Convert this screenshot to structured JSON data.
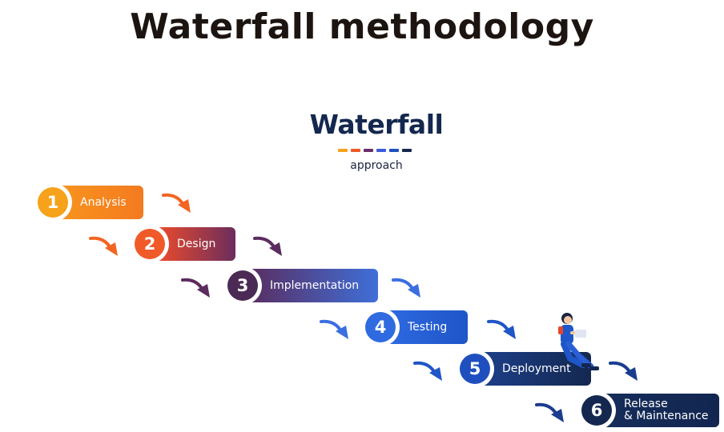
{
  "title": "Waterfall methodology",
  "logo": {
    "word": "Waterfall",
    "sub": "approach",
    "bar_colors": [
      "#f7a21b",
      "#f05a28",
      "#6b2d6b",
      "#3b5bdb",
      "#1f4fbf",
      "#14284f"
    ]
  },
  "steps": [
    {
      "num": "1",
      "label": "Analysis",
      "circle": "#f7a21b",
      "grad": [
        "#f7941d",
        "#f47a20"
      ],
      "arrow": "#f26522"
    },
    {
      "num": "2",
      "label": "Design",
      "circle": "#f05a28",
      "grad": [
        "#ef4c2a",
        "#6b2d5c"
      ],
      "arrow": "#5b2c5f"
    },
    {
      "num": "3",
      "label": "Implementation",
      "circle": "#4b2a55",
      "grad": [
        "#5a2d5f",
        "#3f6fd8"
      ],
      "arrow": "#3b6ee0"
    },
    {
      "num": "4",
      "label": "Testing",
      "circle": "#2f6ae0",
      "grad": [
        "#2e6ae2",
        "#1f55c7"
      ],
      "arrow": "#1f56c8"
    },
    {
      "num": "5",
      "label": "Deployment",
      "circle": "#1f4fbf",
      "grad": [
        "#1d3f8a",
        "#14284f"
      ],
      "arrow": "#1a3d8f"
    },
    {
      "num": "6",
      "label": "Release\n& Maintenance",
      "circle": "#14284f",
      "grad": [
        "#162d5a",
        "#122650"
      ],
      "arrow": "#14284f"
    }
  ],
  "icons": {
    "person": "person-with-laptop-icon"
  }
}
